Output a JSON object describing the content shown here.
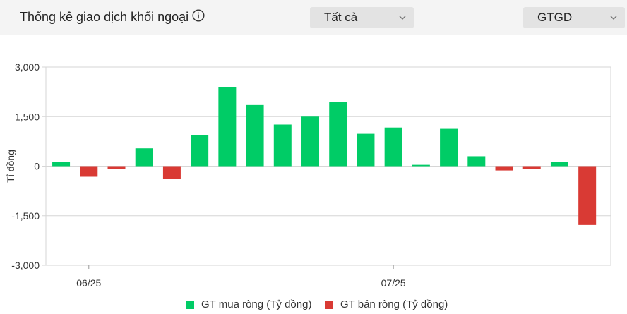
{
  "header": {
    "title": "Thống kê giao dịch khối ngoại",
    "info_icon": "info-circle-icon",
    "filter_1": "Tất cả",
    "filter_2": "GTGD",
    "chevron_icon": "chevron-down-icon"
  },
  "colors": {
    "buy": "#00cc66",
    "sell": "#d93a34",
    "grid": "#d6d6d6"
  },
  "chart_data": {
    "type": "bar",
    "ylabel": "Tỉ đồng",
    "ylim": [
      -3000,
      3000
    ],
    "yticks": [
      3000,
      1500,
      0,
      -1500,
      -3000
    ],
    "ytick_labels": [
      "3,000",
      "1,500",
      "0",
      "-1,500",
      "-3,000"
    ],
    "xtick_labels": [
      {
        "label": "06/25",
        "index": 1
      },
      {
        "label": "07/25",
        "index": 12
      }
    ],
    "values": [
      120,
      -320,
      -90,
      540,
      -390,
      940,
      2400,
      1850,
      1260,
      1500,
      1940,
      980,
      1170,
      40,
      1130,
      300,
      -130,
      -80,
      130,
      -1780
    ],
    "grid": true,
    "legend_position": "bottom",
    "series": [
      {
        "name": "GT mua ròng (Tỷ đồng)",
        "color": "#00cc66"
      },
      {
        "name": "GT bán ròng (Tỷ đồng)",
        "color": "#d93a34"
      }
    ]
  }
}
